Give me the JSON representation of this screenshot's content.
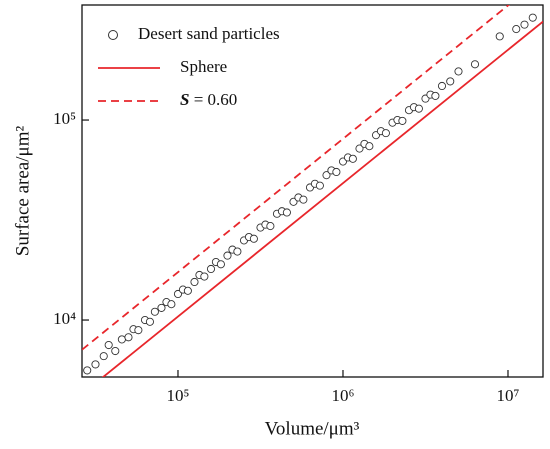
{
  "chart_data": {
    "type": "scatter",
    "xlabel": "Volume/μm³",
    "ylabel": "Surface area/μm²",
    "xscale": "log",
    "yscale": "log",
    "xlim": [
      26200,
      16300000
    ],
    "ylim": [
      5190,
      376000
    ],
    "xticks": [
      {
        "value": 100000,
        "label": "10⁵"
      },
      {
        "value": 1000000,
        "label": "10⁶"
      },
      {
        "value": 10000000,
        "label": "10⁷"
      }
    ],
    "yticks": [
      {
        "value": 10000,
        "label": "10⁴"
      },
      {
        "value": 100000,
        "label": "10⁵"
      }
    ],
    "legend": "upper left",
    "series": [
      {
        "name": "Desert sand particles",
        "type": "scatter",
        "color": "#333333",
        "x": [
          28180,
          31620,
          35480,
          38020,
          41690,
          45710,
          50120,
          53700,
          57540,
          63100,
          67610,
          72440,
          79430,
          85110,
          91200,
          100000,
          107200,
          114800,
          125900,
          134900,
          144500,
          158500,
          169800,
          182000,
          199500,
          213800,
          229100,
          251200,
          269200,
          288400,
          316200,
          338800,
          363100,
          398100,
          426600,
          457100,
          501200,
          537000,
          575400,
          631000,
          676100,
          724400,
          794300,
          851100,
          912000,
          1000000,
          1072000,
          1148000,
          1259000,
          1349000,
          1445000,
          1585000,
          1698000,
          1820000,
          1995000,
          2138000,
          2291000,
          2512000,
          2692000,
          2884000,
          3162000,
          3388000,
          3631000,
          3981000,
          4467000,
          5012000,
          6310000,
          8913000,
          11220000,
          12590000,
          14130000
        ],
        "values": [
          5600,
          6000,
          6600,
          7500,
          7000,
          8000,
          8200,
          9000,
          8900,
          10000,
          9800,
          11000,
          11500,
          12300,
          12000,
          13500,
          14200,
          14000,
          15500,
          16800,
          16500,
          18000,
          19500,
          19000,
          21000,
          22500,
          22000,
          25000,
          26000,
          25500,
          29000,
          30000,
          29500,
          34000,
          35000,
          34500,
          39000,
          41000,
          40000,
          46000,
          48000,
          47000,
          53000,
          56000,
          55000,
          62000,
          65000,
          64000,
          72000,
          76000,
          74000,
          84000,
          88000,
          86000,
          97000,
          100000,
          99000,
          112000,
          116000,
          114000,
          128000,
          134000,
          132000,
          148000,
          156000,
          175000,
          190000,
          262000,
          285000,
          300000,
          325000
        ]
      },
      {
        "name": "Sphere",
        "type": "line",
        "linestyle": "solid",
        "color": "#e8262b",
        "x": [
          26200,
          16300000
        ],
        "values": [
          4263,
          310800
        ]
      },
      {
        "name": "S = 0.60",
        "type": "line",
        "linestyle": "dashed",
        "color": "#e8262b",
        "x": [
          26200,
          16300000
        ],
        "values": [
          7105,
          518000
        ]
      }
    ]
  }
}
